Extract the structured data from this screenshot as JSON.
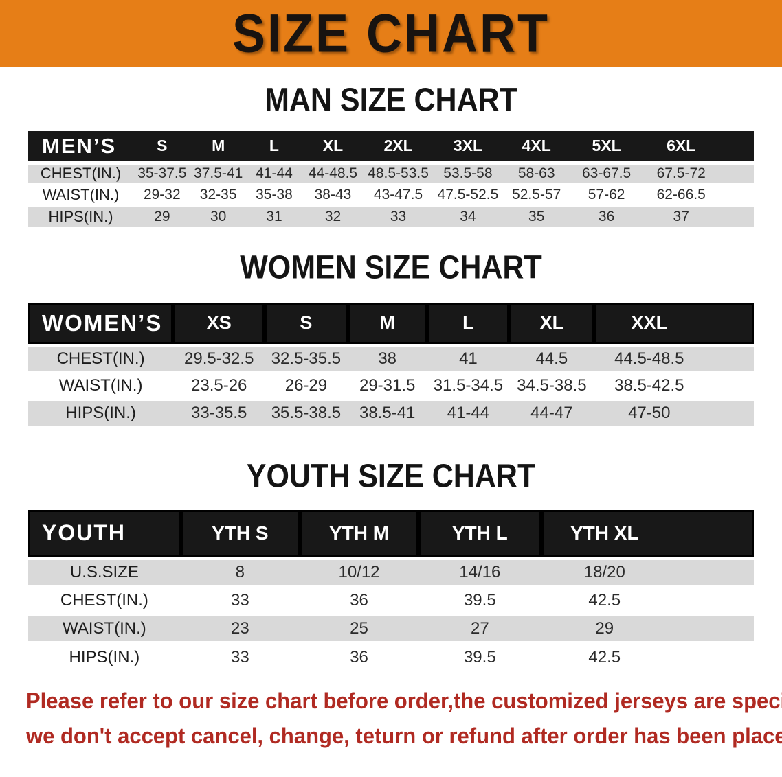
{
  "banner": {
    "title": "SIZE CHART",
    "bg_color": "#E67E17",
    "text_color": "#181310"
  },
  "sections": {
    "men": {
      "heading": "MAN SIZE CHART",
      "table": {
        "label": "MEN’S",
        "columns": [
          "S",
          "M",
          "L",
          "XL",
          "2XL",
          "3XL",
          "4XL",
          "5XL",
          "6XL"
        ],
        "rows": [
          {
            "label": "CHEST(IN.)",
            "values": [
              "35-37.5",
              "37.5-41",
              "41-44",
              "44-48.5",
              "48.5-53.5",
              "53.5-58",
              "58-63",
              "63-67.5",
              "67.5-72"
            ]
          },
          {
            "label": "WAIST(IN.)",
            "values": [
              "29-32",
              "32-35",
              "35-38",
              "38-43",
              "43-47.5",
              "47.5-52.5",
              "52.5-57",
              "57-62",
              "62-66.5"
            ]
          },
          {
            "label": "HIPS(IN.)",
            "values": [
              "29",
              "30",
              "31",
              "32",
              "33",
              "34",
              "35",
              "36",
              "37"
            ]
          }
        ]
      }
    },
    "women": {
      "heading": "WOMEN SIZE CHART",
      "table": {
        "label": "WOMEN’S",
        "columns": [
          "XS",
          "S",
          "M",
          "L",
          "XL",
          "XXL"
        ],
        "rows": [
          {
            "label": "CHEST(IN.)",
            "values": [
              "29.5-32.5",
              "32.5-35.5",
              "38",
              "41",
              "44.5",
              "44.5-48.5"
            ]
          },
          {
            "label": "WAIST(IN.)",
            "values": [
              "23.5-26",
              "26-29",
              "29-31.5",
              "31.5-34.5",
              "34.5-38.5",
              "38.5-42.5"
            ]
          },
          {
            "label": "HIPS(IN.)",
            "values": [
              "33-35.5",
              "35.5-38.5",
              "38.5-41",
              "41-44",
              "44-47",
              "47-50"
            ]
          }
        ]
      }
    },
    "youth": {
      "heading": "YOUTH SIZE CHART",
      "table": {
        "label": "YOUTH",
        "columns": [
          "YTH S",
          "YTH M",
          "YTH L",
          "YTH XL"
        ],
        "rows": [
          {
            "label": "U.S.SIZE",
            "values": [
              "8",
              "10/12",
              "14/16",
              "18/20"
            ]
          },
          {
            "label": "CHEST(IN.)",
            "values": [
              "33",
              "36",
              "39.5",
              "42.5"
            ]
          },
          {
            "label": "WAIST(IN.)",
            "values": [
              "23",
              "25",
              "27",
              "29"
            ]
          },
          {
            "label": "HIPS(IN.)",
            "values": [
              "33",
              "36",
              "39.5",
              "42.5"
            ]
          }
        ]
      }
    }
  },
  "disclaimer": {
    "line1": "Please refer to our size chart before order,the customized jerseys are special products,",
    "line2": "we don't accept cancel, change, teturn or refund after order has been placed!",
    "color": "#B02A22"
  }
}
